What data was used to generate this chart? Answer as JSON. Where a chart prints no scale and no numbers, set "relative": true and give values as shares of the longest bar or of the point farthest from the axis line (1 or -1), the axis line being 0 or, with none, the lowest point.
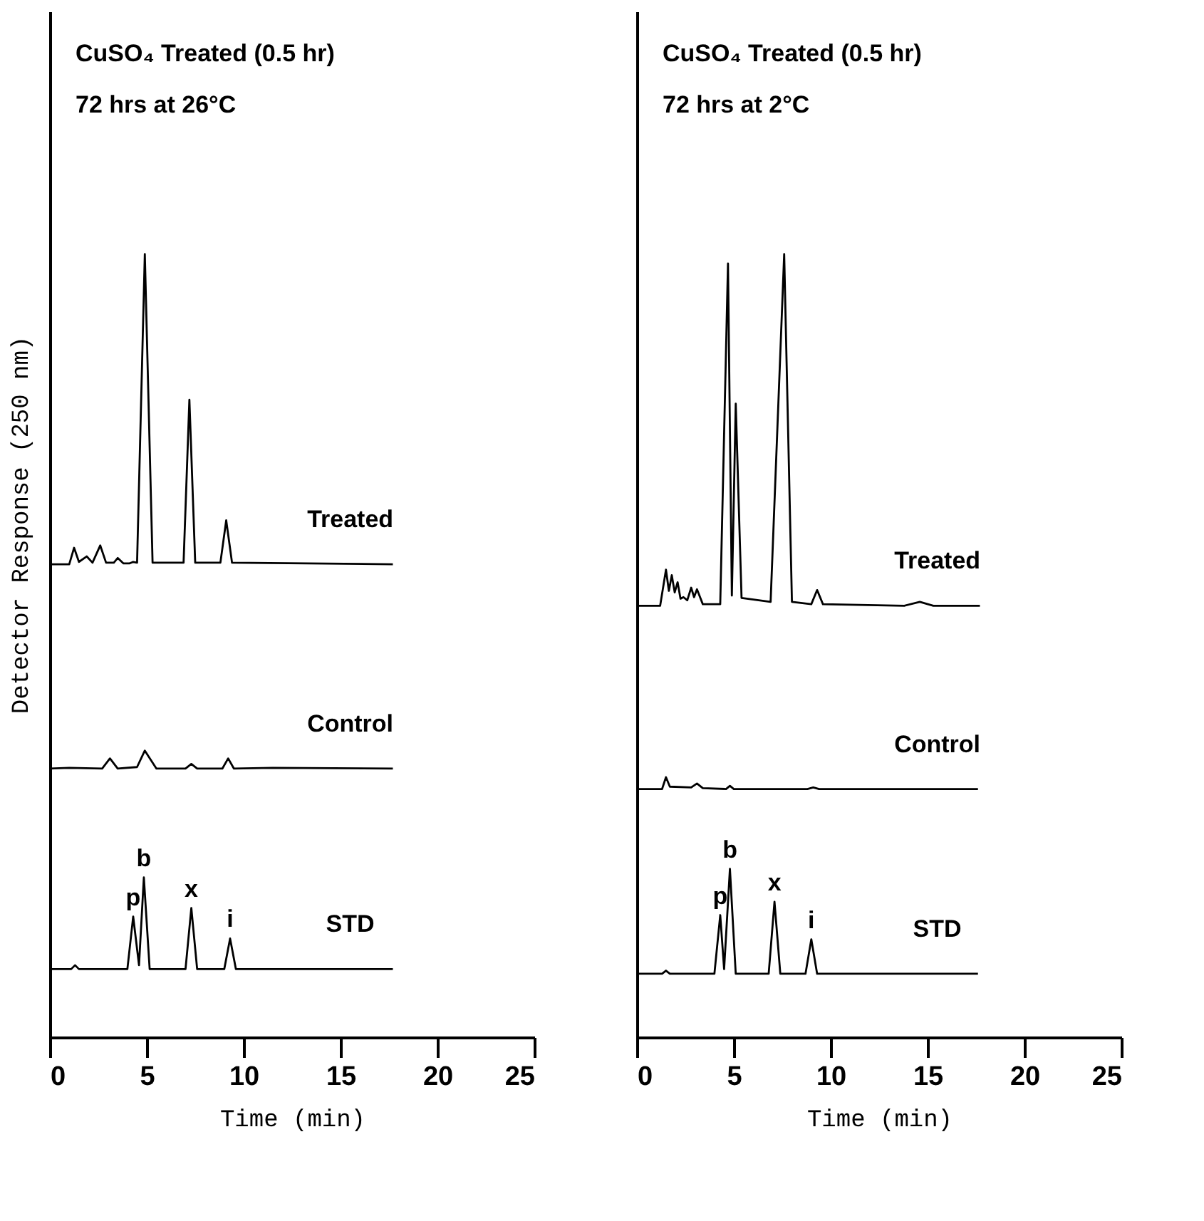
{
  "chart_data": [
    {
      "type": "line",
      "title": "CuSO₄ Treated (0.5 hr)",
      "subtitle": "72 hrs at 26°C",
      "xlabel": "Time (min)",
      "ylabel": "Detector Response (250 nm)",
      "relative": true,
      "xlim": [
        0,
        25
      ],
      "xticks": [
        0,
        5,
        10,
        15,
        20,
        25
      ],
      "tick_labels": "x",
      "grid": false,
      "marker": "none",
      "line_style": "solid",
      "series": [
        {
          "name": "Treated",
          "color": "#000000",
          "x": [
            0,
            1.0,
            1.25,
            1.5,
            1.9,
            2.2,
            2.6,
            2.9,
            3.3,
            3.5,
            3.8,
            4.1,
            4.3,
            4.5,
            4.9,
            5.3,
            6.9,
            7.2,
            7.5,
            8.8,
            9.1,
            9.4,
            17.7
          ],
          "values": [
            0.604,
            0.604,
            0.625,
            0.607,
            0.614,
            0.606,
            0.628,
            0.606,
            0.606,
            0.612,
            0.605,
            0.605,
            0.607,
            0.606,
            1.0,
            0.606,
            0.606,
            0.814,
            0.606,
            0.606,
            0.66,
            0.606,
            0.604
          ]
        },
        {
          "name": "Control",
          "color": "#000000",
          "x": [
            0,
            1,
            2.7,
            3.1,
            3.5,
            4.5,
            4.9,
            5.5,
            7.0,
            7.3,
            7.6,
            8.9,
            9.2,
            9.5,
            11.5,
            17.7
          ],
          "values": [
            0.343,
            0.344,
            0.343,
            0.356,
            0.343,
            0.345,
            0.366,
            0.343,
            0.343,
            0.349,
            0.343,
            0.343,
            0.356,
            0.343,
            0.344,
            0.343
          ]
        },
        {
          "name": "STD",
          "color": "#000000",
          "x": [
            0,
            1.1,
            1.3,
            1.5,
            4.0,
            4.3,
            4.6,
            4.85,
            5.15,
            7.0,
            7.3,
            7.6,
            9.0,
            9.3,
            9.6,
            17.7
          ],
          "values": [
            0.087,
            0.087,
            0.092,
            0.087,
            0.087,
            0.154,
            0.092,
            0.204,
            0.087,
            0.087,
            0.165,
            0.087,
            0.087,
            0.126,
            0.087,
            0.087
          ]
        }
      ],
      "annotations": [
        {
          "text": "p",
          "x": 4.3,
          "y": 0.154
        },
        {
          "text": "b",
          "x": 4.85,
          "y": 0.204
        },
        {
          "text": "x",
          "x": 7.3,
          "y": 0.165
        },
        {
          "text": "i",
          "x": 9.3,
          "y": 0.126
        }
      ]
    },
    {
      "type": "line",
      "title": "CuSO₄ Treated (0.5 hr)",
      "subtitle": "72 hrs at 2°C",
      "xlabel": "Time (min)",
      "relative": true,
      "xlim": [
        0,
        25
      ],
      "xticks": [
        0,
        5,
        10,
        15,
        20,
        25
      ],
      "tick_labels": "x",
      "grid": false,
      "marker": "none",
      "line_style": "solid",
      "series": [
        {
          "name": "Treated",
          "color": "#000000",
          "x": [
            0,
            1.2,
            1.5,
            1.65,
            1.8,
            1.95,
            2.1,
            2.25,
            2.4,
            2.6,
            2.8,
            2.95,
            3.1,
            3.4,
            4.3,
            4.7,
            4.9,
            5.1,
            5.4,
            6.9,
            7.6,
            8.0,
            9.0,
            9.3,
            9.6,
            13.8,
            14.6,
            15.3,
            17.7
          ],
          "values": [
            0.551,
            0.551,
            0.597,
            0.57,
            0.59,
            0.568,
            0.581,
            0.56,
            0.562,
            0.558,
            0.574,
            0.562,
            0.572,
            0.553,
            0.553,
            0.988,
            0.564,
            0.809,
            0.561,
            0.556,
            1.0,
            0.556,
            0.553,
            0.571,
            0.553,
            0.551,
            0.556,
            0.551,
            0.551
          ]
        },
        {
          "name": "Control",
          "color": "#000000",
          "x": [
            0,
            1.3,
            1.5,
            1.7,
            2.8,
            3.1,
            3.4,
            4.6,
            4.8,
            5.0,
            8.8,
            9.1,
            9.4,
            17.6
          ],
          "values": [
            0.317,
            0.317,
            0.332,
            0.32,
            0.319,
            0.324,
            0.318,
            0.317,
            0.321,
            0.317,
            0.317,
            0.319,
            0.317,
            0.317
          ]
        },
        {
          "name": "STD",
          "color": "#000000",
          "x": [
            0,
            1.3,
            1.5,
            1.7,
            4.0,
            4.3,
            4.5,
            4.8,
            5.1,
            6.8,
            7.1,
            7.4,
            8.7,
            9.0,
            9.3,
            17.6
          ],
          "values": [
            0.081,
            0.081,
            0.085,
            0.081,
            0.081,
            0.156,
            0.087,
            0.215,
            0.081,
            0.081,
            0.173,
            0.081,
            0.081,
            0.125,
            0.081,
            0.081
          ]
        }
      ],
      "annotations": [
        {
          "text": "p",
          "x": 4.3,
          "y": 0.156
        },
        {
          "text": "b",
          "x": 4.8,
          "y": 0.215
        },
        {
          "text": "x",
          "x": 7.1,
          "y": 0.173
        },
        {
          "text": "i",
          "x": 9.0,
          "y": 0.125
        }
      ]
    }
  ]
}
